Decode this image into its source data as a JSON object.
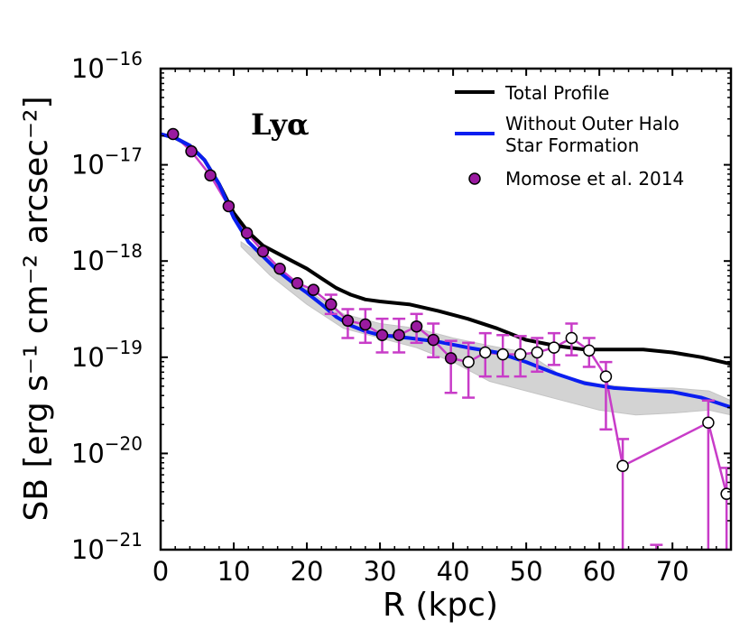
{
  "chart_data": {
    "type": "line",
    "title": "",
    "xlabel": "R (kpc)",
    "ylabel": "SB [erg s⁻¹ cm⁻² arcsec⁻²]",
    "xlim": [
      0,
      78
    ],
    "ylim_log10": [
      -21,
      -16
    ],
    "yscale": "log",
    "annotation": "Lyα",
    "x_ticks": [
      0,
      10,
      20,
      30,
      40,
      50,
      60,
      70
    ],
    "x_tick_labels": [
      "0",
      "10",
      "20",
      "30",
      "40",
      "50",
      "60",
      "70"
    ],
    "y_ticks_log10": [
      -21,
      -20,
      -19,
      -18,
      -17,
      -16
    ],
    "y_tick_labels": [
      {
        "base": "10",
        "exp": "−21"
      },
      {
        "base": "10",
        "exp": "−20"
      },
      {
        "base": "10",
        "exp": "−19"
      },
      {
        "base": "10",
        "exp": "−18"
      },
      {
        "base": "10",
        "exp": "−17"
      },
      {
        "base": "10",
        "exp": "−16"
      }
    ],
    "legend": {
      "placement": "top-right",
      "entries": [
        {
          "label": "Total Profile",
          "kind": "line",
          "color": "#000000"
        },
        {
          "label": "Without Outer Halo",
          "label2": "Star Formation",
          "kind": "line",
          "color": "#0a1ef0"
        },
        {
          "label": "Momose et al. 2014",
          "kind": "marker",
          "color": "#9a1aa0"
        }
      ]
    },
    "series": [
      {
        "name": "Total Profile",
        "color": "#000000",
        "points": [
          [
            0,
            -16.68
          ],
          [
            2,
            -16.72
          ],
          [
            4,
            -16.8
          ],
          [
            6,
            -16.95
          ],
          [
            8,
            -17.2
          ],
          [
            10,
            -17.5
          ],
          [
            12,
            -17.7
          ],
          [
            14,
            -17.84
          ],
          [
            16,
            -17.92
          ],
          [
            18,
            -18.0
          ],
          [
            20,
            -18.08
          ],
          [
            22,
            -18.18
          ],
          [
            24,
            -18.28
          ],
          [
            26,
            -18.35
          ],
          [
            28,
            -18.4
          ],
          [
            30,
            -18.42
          ],
          [
            34,
            -18.45
          ],
          [
            38,
            -18.52
          ],
          [
            42,
            -18.6
          ],
          [
            46,
            -18.7
          ],
          [
            50,
            -18.82
          ],
          [
            54,
            -18.88
          ],
          [
            58,
            -18.92
          ],
          [
            62,
            -18.92
          ],
          [
            66,
            -18.92
          ],
          [
            70,
            -18.95
          ],
          [
            74,
            -19.0
          ],
          [
            78,
            -19.07
          ]
        ]
      },
      {
        "name": "Without Outer Halo Star Formation",
        "color": "#0a1ef0",
        "points": [
          [
            0,
            -16.68
          ],
          [
            2,
            -16.72
          ],
          [
            4,
            -16.8
          ],
          [
            6,
            -16.95
          ],
          [
            8,
            -17.2
          ],
          [
            10,
            -17.55
          ],
          [
            12,
            -17.8
          ],
          [
            14,
            -17.95
          ],
          [
            16,
            -18.1
          ],
          [
            18,
            -18.22
          ],
          [
            20,
            -18.33
          ],
          [
            22,
            -18.45
          ],
          [
            24,
            -18.58
          ],
          [
            26,
            -18.67
          ],
          [
            28,
            -18.73
          ],
          [
            30,
            -18.77
          ],
          [
            34,
            -18.8
          ],
          [
            38,
            -18.84
          ],
          [
            42,
            -18.9
          ],
          [
            46,
            -18.95
          ],
          [
            50,
            -19.05
          ],
          [
            54,
            -19.17
          ],
          [
            58,
            -19.27
          ],
          [
            62,
            -19.32
          ],
          [
            66,
            -19.34
          ],
          [
            70,
            -19.36
          ],
          [
            74,
            -19.42
          ],
          [
            78,
            -19.52
          ]
        ]
      }
    ],
    "band": {
      "name": "scatter range",
      "color": "#d3d3d3",
      "upper": [
        [
          11,
          -17.8
        ],
        [
          15,
          -18.0
        ],
        [
          20,
          -18.3
        ],
        [
          25,
          -18.55
        ],
        [
          30,
          -18.65
        ],
        [
          35,
          -18.7
        ],
        [
          40,
          -18.8
        ],
        [
          45,
          -18.88
        ],
        [
          50,
          -18.95
        ],
        [
          55,
          -19.2
        ],
        [
          60,
          -19.28
        ],
        [
          65,
          -19.32
        ],
        [
          70,
          -19.32
        ],
        [
          75,
          -19.35
        ],
        [
          78,
          -19.45
        ]
      ],
      "lower": [
        [
          78,
          -19.6
        ],
        [
          75,
          -19.55
        ],
        [
          70,
          -19.58
        ],
        [
          65,
          -19.6
        ],
        [
          60,
          -19.55
        ],
        [
          55,
          -19.45
        ],
        [
          50,
          -19.35
        ],
        [
          45,
          -19.25
        ],
        [
          40,
          -19.05
        ],
        [
          35,
          -18.9
        ],
        [
          30,
          -18.8
        ],
        [
          25,
          -18.7
        ],
        [
          20,
          -18.45
        ],
        [
          15,
          -18.15
        ],
        [
          11,
          -17.85
        ]
      ]
    },
    "observations": {
      "name": "Momose et al. 2014",
      "filled_color": "#9a1aa0",
      "open_color": "#ffffff",
      "errorbar_color": "#c83cc8",
      "connect_line_color": "#c83cc8",
      "points": [
        {
          "x": 1.7,
          "y": -16.68,
          "ylo": -16.68,
          "yhi": -16.68,
          "filled": true
        },
        {
          "x": 4.2,
          "y": -16.86,
          "ylo": -16.86,
          "yhi": -16.86,
          "filled": true
        },
        {
          "x": 6.8,
          "y": -17.11,
          "ylo": -17.11,
          "yhi": -17.11,
          "filled": true
        },
        {
          "x": 9.3,
          "y": -17.43,
          "ylo": -17.43,
          "yhi": -17.43,
          "filled": true
        },
        {
          "x": 11.8,
          "y": -17.71,
          "ylo": -17.71,
          "yhi": -17.71,
          "filled": true
        },
        {
          "x": 14.0,
          "y": -17.9,
          "ylo": -17.9,
          "yhi": -17.9,
          "filled": true
        },
        {
          "x": 16.3,
          "y": -18.08,
          "ylo": -18.08,
          "yhi": -18.08,
          "filled": true
        },
        {
          "x": 18.7,
          "y": -18.23,
          "ylo": -18.23,
          "yhi": -18.23,
          "filled": true
        },
        {
          "x": 20.9,
          "y": -18.3,
          "ylo": -18.3,
          "yhi": -18.3,
          "filled": true
        },
        {
          "x": 23.3,
          "y": -18.45,
          "ylo": -18.55,
          "yhi": -18.35,
          "filled": true
        },
        {
          "x": 25.6,
          "y": -18.62,
          "ylo": -18.8,
          "yhi": -18.5,
          "filled": true
        },
        {
          "x": 28.0,
          "y": -18.66,
          "ylo": -18.85,
          "yhi": -18.5,
          "filled": true
        },
        {
          "x": 30.3,
          "y": -18.77,
          "ylo": -18.95,
          "yhi": -18.6,
          "filled": true
        },
        {
          "x": 32.6,
          "y": -18.77,
          "ylo": -18.95,
          "yhi": -18.6,
          "filled": true
        },
        {
          "x": 35.0,
          "y": -18.68,
          "ylo": -18.85,
          "yhi": -18.55,
          "filled": true
        },
        {
          "x": 37.3,
          "y": -18.82,
          "ylo": -19.0,
          "yhi": -18.65,
          "filled": true
        },
        {
          "x": 39.7,
          "y": -19.01,
          "ylo": -19.37,
          "yhi": -18.83,
          "filled": true
        },
        {
          "x": 42.1,
          "y": -19.05,
          "ylo": -19.42,
          "yhi": -18.85,
          "filled": false
        },
        {
          "x": 44.4,
          "y": -18.95,
          "ylo": -19.2,
          "yhi": -18.75,
          "filled": false
        },
        {
          "x": 46.8,
          "y": -18.97,
          "ylo": -19.2,
          "yhi": -18.77,
          "filled": false
        },
        {
          "x": 49.2,
          "y": -18.97,
          "ylo": -19.2,
          "yhi": -18.78,
          "filled": false
        },
        {
          "x": 51.5,
          "y": -18.95,
          "ylo": -19.15,
          "yhi": -18.8,
          "filled": false
        },
        {
          "x": 53.8,
          "y": -18.9,
          "ylo": -19.08,
          "yhi": -18.75,
          "filled": false
        },
        {
          "x": 56.2,
          "y": -18.8,
          "ylo": -18.98,
          "yhi": -18.65,
          "filled": false
        },
        {
          "x": 58.6,
          "y": -18.93,
          "ylo": -19.1,
          "yhi": -18.8,
          "filled": false
        },
        {
          "x": 60.9,
          "y": -19.2,
          "ylo": -19.75,
          "yhi": -19.05,
          "filled": false
        },
        {
          "x": 63.2,
          "y": -20.13,
          "ylo": -21.2,
          "yhi": -19.85,
          "filled": false
        },
        {
          "x": 74.9,
          "y": -19.68,
          "ylo": -21.2,
          "yhi": -19.45,
          "filled": false
        },
        {
          "x": 77.4,
          "y": -20.42,
          "ylo": -21.2,
          "yhi": -20.15,
          "filled": false
        }
      ],
      "extra_lower_bar": {
        "x": 67.8,
        "ylo": -21.2,
        "yhi": -20.95
      }
    }
  }
}
